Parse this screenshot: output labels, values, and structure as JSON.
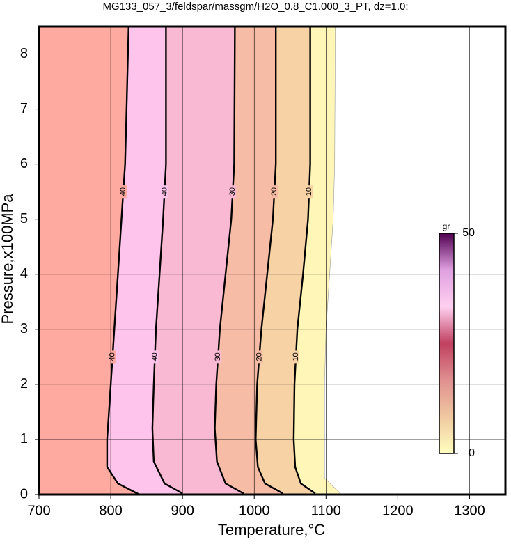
{
  "chart_data": {
    "type": "contour",
    "title": "MG133_057_3/feldspar/massgm/H2O_0.8_C1.000_3_PT, dz=1.0:",
    "xlabel": "Temperature,°C",
    "ylabel": "Pressure,x100MPa",
    "xlim": [
      700,
      1350
    ],
    "xticks": [
      700,
      800,
      900,
      1000,
      1100,
      1200,
      1300
    ],
    "ylim": [
      0,
      8.5
    ],
    "yticks": [
      0,
      1,
      2,
      3,
      4,
      5,
      6,
      7,
      8
    ],
    "grid": true,
    "background": "#ffaaa0",
    "contours": [
      {
        "level": 0,
        "color": "#fff6b8",
        "x": [
          1113,
          1112,
          1110,
          1105,
          1100,
          1098,
          1098,
          1098,
          1120
        ],
        "y": [
          8.5,
          6,
          5,
          4,
          3,
          2,
          1,
          0.3,
          0.02
        ]
      },
      {
        "level": 10,
        "color": "#f6d2a4",
        "x": [
          1078,
          1078,
          1075,
          1068,
          1060,
          1056,
          1055,
          1057,
          1065,
          1085
        ],
        "y": [
          8.5,
          6,
          5,
          4,
          3,
          2,
          1,
          0.5,
          0.2,
          0.02
        ]
      },
      {
        "level": 20,
        "color": "#f7bca6",
        "x": [
          1030,
          1030,
          1026,
          1018,
          1010,
          1004,
          1002,
          1005,
          1015,
          1040
        ],
        "y": [
          8.5,
          6,
          5,
          4,
          3,
          2,
          1,
          0.5,
          0.2,
          0.02
        ]
      },
      {
        "level": 30,
        "color": "#f9b9d2",
        "x": [
          973,
          972,
          968,
          960,
          952,
          947,
          945,
          948,
          960,
          985
        ],
        "y": [
          8.5,
          6,
          5,
          4,
          3,
          2,
          1.2,
          0.6,
          0.2,
          0.02
        ]
      },
      {
        "level": 40,
        "color": "#ffc4ec",
        "x": [
          877,
          877,
          873,
          868,
          863,
          860,
          858,
          860,
          875,
          900
        ],
        "y": [
          8.5,
          6,
          5,
          4,
          3,
          2,
          1.2,
          0.6,
          0.2,
          0.02
        ]
      },
      {
        "level": 40,
        "color": "#ffaaa0",
        "x": [
          825,
          822,
          820,
          815,
          810,
          805,
          800,
          795,
          795,
          810,
          840
        ],
        "y": [
          8.5,
          7,
          6,
          5,
          4,
          3,
          2,
          1,
          0.5,
          0.2,
          0
        ]
      }
    ],
    "colorbar": {
      "label": "gr",
      "lim": [
        0,
        50
      ],
      "ticks": [
        0,
        50
      ],
      "colors": [
        "#ffffc0",
        "#f0c8a0",
        "#e09090",
        "#c04060",
        "#ffd0f0",
        "#e0a0e0",
        "#500050"
      ]
    }
  }
}
